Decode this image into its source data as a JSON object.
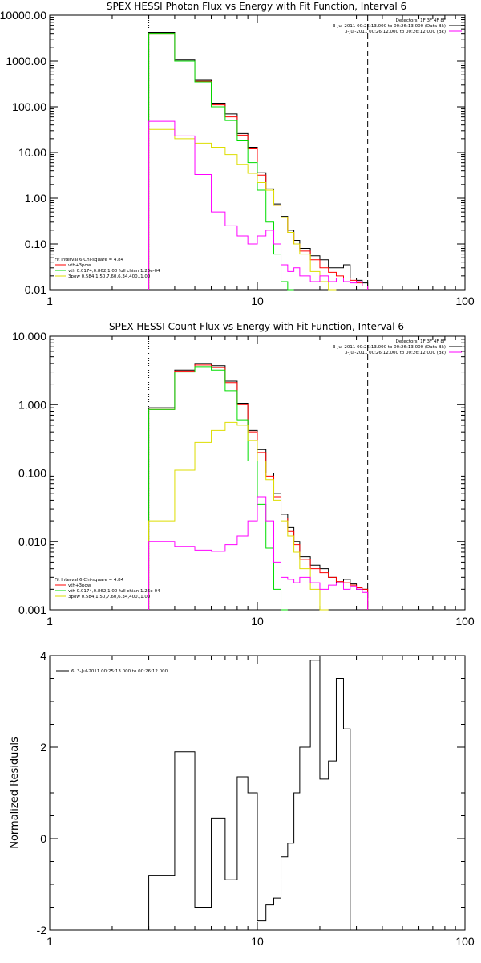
{
  "chart_data": [
    {
      "type": "line",
      "step": true,
      "title": "SPEX HESSI Photon Flux vs Energy with Fit Function, Interval 6",
      "xscale": "log",
      "yscale": "log",
      "xlim": [
        1,
        100
      ],
      "ylim": [
        0.01,
        10000
      ],
      "x_ticks": [
        "1",
        "10",
        "100"
      ],
      "y_ticks": [
        "0.01",
        "0.10",
        "1.00",
        "10.00",
        "100.00",
        "1000.00",
        "10000.00"
      ],
      "vlines": [
        {
          "x": 3,
          "style": "dotted",
          "color": "#000000"
        },
        {
          "x": 34,
          "style": "dashed",
          "color": "#000000"
        }
      ],
      "legend_tr": {
        "position": "top-right",
        "lines": [
          {
            "text": "Detectors: 1F 3F 4F 8F",
            "color": ""
          },
          {
            "text": "3-Jul-2011 00:25:13.000 to 00:26:13.000 (Data-Bk)",
            "color": "#000000"
          },
          {
            "text": "3-Jul-2011 00:26:12.000 to 00:26:12.000 (Bk)",
            "color": "#ff00ff"
          }
        ]
      },
      "legend_bl": {
        "position": "bottom-left",
        "lines": [
          {
            "text": "Fit Interval 6   Chi-square = 4.84",
            "color": ""
          },
          {
            "text": "vth+3pow",
            "color": "#ff0000"
          },
          {
            "text": "vth 0.0174,0.862,1.00  full chian 1.26e-04",
            "color": "#00dd00"
          },
          {
            "text": "3pow 0.584,1.50,7.60,6.34,400.,1.00",
            "color": "#dddd00"
          }
        ]
      },
      "edges": [
        3,
        4,
        5,
        6,
        7,
        8,
        9,
        10,
        11,
        12,
        13,
        14,
        15,
        16,
        18,
        20,
        22,
        24,
        26,
        28,
        30,
        32,
        34
      ],
      "series": [
        {
          "name": "Data-Bk",
          "color": "#000000",
          "values": [
            4200,
            1050,
            380,
            120,
            70,
            26,
            13,
            3.6,
            1.6,
            0.75,
            0.4,
            0.2,
            0.12,
            0.08,
            0.055,
            0.045,
            0.03,
            0.03,
            0.035,
            0.018,
            0.016,
            0.014
          ]
        },
        {
          "name": "vth+3pow",
          "color": "#ff0000",
          "values": [
            4000,
            1000,
            360,
            110,
            60,
            24,
            12,
            3.2,
            1.5,
            0.7,
            0.38,
            0.18,
            0.1,
            0.07,
            0.045,
            0.03,
            0.024,
            0.02,
            0.018,
            0.016,
            0.014,
            0.012
          ]
        },
        {
          "name": "vth",
          "color": "#00dd00",
          "values": [
            4000,
            1000,
            350,
            100,
            50,
            18,
            6,
            1.5,
            0.3,
            0.06,
            0.015,
            0.01
          ]
        },
        {
          "name": "3pow",
          "color": "#dddd00",
          "values": [
            32,
            20,
            16,
            13,
            9,
            5.5,
            3.5,
            2.2,
            1.5,
            0.7,
            0.38,
            0.18,
            0.1,
            0.06,
            0.025,
            0.015,
            0.01
          ]
        },
        {
          "name": "Bk",
          "color": "#ff00ff",
          "values": [
            48,
            23,
            3.3,
            0.5,
            0.25,
            0.15,
            0.1,
            0.15,
            0.2,
            0.1,
            0.035,
            0.025,
            0.03,
            0.02,
            0.015,
            0.02,
            0.015,
            0.018,
            0.015,
            0.014,
            0.015,
            0.012
          ]
        }
      ]
    },
    {
      "type": "line",
      "step": true,
      "title": "SPEX HESSI Count Flux vs Energy with Fit Function, Interval 6",
      "xscale": "log",
      "yscale": "log",
      "xlim": [
        1,
        100
      ],
      "ylim": [
        0.001,
        10
      ],
      "x_ticks": [
        "1",
        "10",
        "100"
      ],
      "y_ticks": [
        "0.001",
        "0.010",
        "0.100",
        "1.000",
        "10.000"
      ],
      "vlines": [
        {
          "x": 3,
          "style": "dotted",
          "color": "#000000"
        },
        {
          "x": 34,
          "style": "dashed",
          "color": "#000000"
        }
      ],
      "legend_tr": {
        "position": "top-right",
        "lines": [
          {
            "text": "Detectors: 1F 3F 4F 8F",
            "color": ""
          },
          {
            "text": "3-Jul-2011 00:25:13.000 to 00:26:13.000 (Data-Bk)",
            "color": "#000000"
          },
          {
            "text": "3-Jul-2011 00:26:12.000 to 00:26:12.000 (Bk)",
            "color": "#ff00ff"
          }
        ]
      },
      "legend_bl": {
        "position": "bottom-left",
        "lines": [
          {
            "text": "Fit Interval 6   Chi-square = 4.84",
            "color": ""
          },
          {
            "text": "vth+3pow",
            "color": "#ff0000"
          },
          {
            "text": "vth 0.0174,0.862,1.00  full chian 1.26e-04",
            "color": "#00dd00"
          },
          {
            "text": "3pow 0.584,1.50,7.60,6.34,400.,1.00",
            "color": "#dddd00"
          }
        ]
      },
      "edges": [
        3,
        4,
        5,
        6,
        7,
        8,
        9,
        10,
        11,
        12,
        13,
        14,
        15,
        16,
        18,
        20,
        22,
        24,
        26,
        28,
        30,
        32,
        34
      ],
      "series": [
        {
          "name": "Data-Bk",
          "color": "#000000",
          "values": [
            0.9,
            3.2,
            4.0,
            3.7,
            2.2,
            1.05,
            0.42,
            0.22,
            0.1,
            0.05,
            0.025,
            0.016,
            0.01,
            0.006,
            0.0045,
            0.004,
            0.003,
            0.0025,
            0.0028,
            0.0024,
            0.002,
            0.002
          ]
        },
        {
          "name": "vth+3pow",
          "color": "#ff0000",
          "values": [
            0.85,
            3.1,
            3.8,
            3.5,
            2.1,
            1.0,
            0.4,
            0.2,
            0.09,
            0.045,
            0.022,
            0.014,
            0.009,
            0.0055,
            0.004,
            0.0035,
            0.003,
            0.0026,
            0.0025,
            0.0023,
            0.0021,
            0.002
          ]
        },
        {
          "name": "vth",
          "color": "#00dd00",
          "values": [
            0.85,
            3.0,
            3.6,
            3.2,
            1.6,
            0.6,
            0.15,
            0.035,
            0.008,
            0.002,
            0.001
          ]
        },
        {
          "name": "3pow",
          "color": "#dddd00",
          "values": [
            0.02,
            0.11,
            0.28,
            0.42,
            0.55,
            0.5,
            0.3,
            0.15,
            0.08,
            0.04,
            0.02,
            0.012,
            0.007,
            0.004,
            0.002,
            0.001
          ]
        },
        {
          "name": "Bk",
          "color": "#ff00ff",
          "values": [
            0.01,
            0.0085,
            0.0075,
            0.0072,
            0.009,
            0.012,
            0.02,
            0.045,
            0.02,
            0.005,
            0.003,
            0.0028,
            0.0025,
            0.003,
            0.0025,
            0.002,
            0.0023,
            0.0025,
            0.002,
            0.0022,
            0.002,
            0.0018
          ]
        }
      ]
    },
    {
      "type": "line",
      "step": true,
      "title": "",
      "xscale": "log",
      "yscale": "linear",
      "xlim": [
        1,
        100
      ],
      "ylim": [
        -2,
        4
      ],
      "ylabel": "Normalized Residuals",
      "x_ticks": [
        "1",
        "10",
        "100"
      ],
      "y_ticks": [
        "-2",
        "0",
        "2",
        "4"
      ],
      "legend": {
        "position": "top-left",
        "text": "6. 3-Jul-2011 00:25:13.000 to 00:26:12.000",
        "color": "#000000"
      },
      "edges": [
        3,
        4,
        5,
        6,
        7,
        8,
        9,
        10,
        11,
        12,
        13,
        14,
        15,
        16,
        18,
        20,
        22,
        24,
        26,
        28,
        30,
        32,
        34
      ],
      "series": [
        {
          "name": "",
          "color": "#000000",
          "values": [
            -0.8,
            1.9,
            -1.5,
            0.45,
            -0.9,
            1.35,
            1.0,
            -1.8,
            -1.45,
            -1.3,
            -0.4,
            -0.1,
            1.0,
            2.0,
            3.9,
            1.3,
            1.7,
            3.5,
            2.4,
            -2.0
          ]
        }
      ]
    }
  ]
}
